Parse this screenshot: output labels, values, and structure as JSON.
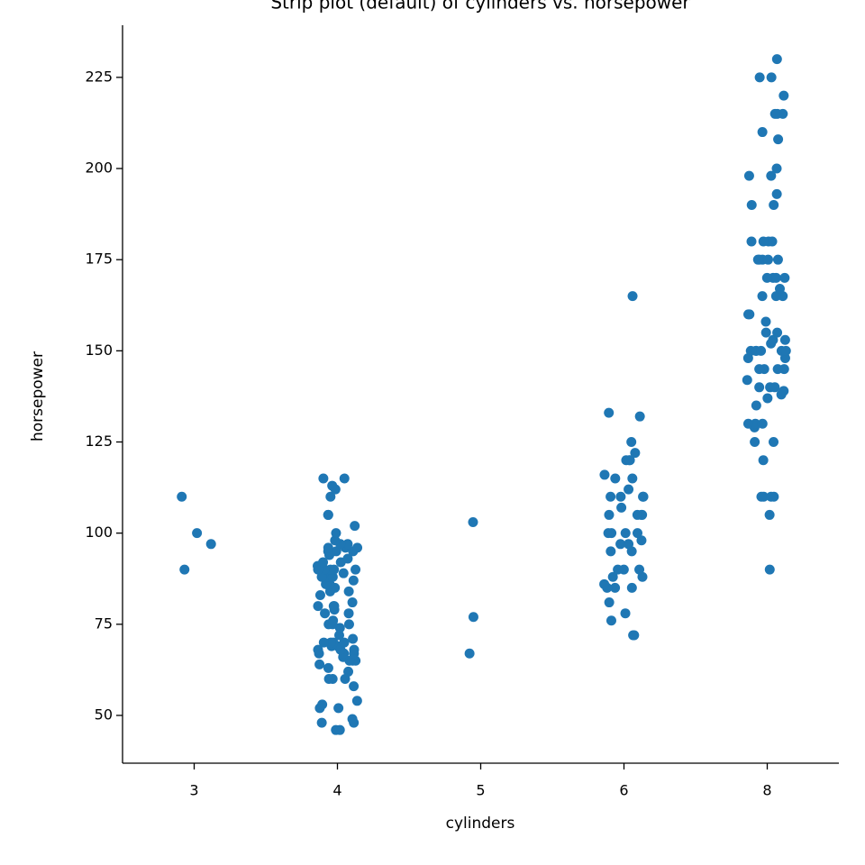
{
  "chart_data": {
    "type": "strip",
    "title": "Strip plot (default) of cylinders vs. horsepower",
    "x_label": "cylinders",
    "y_label": "horsepower",
    "categories": [
      "3",
      "4",
      "5",
      "6",
      "8"
    ],
    "values": [
      [
        90,
        97,
        100,
        110
      ],
      [
        46,
        46,
        48,
        48,
        49,
        52,
        52,
        53,
        54,
        58,
        60,
        60,
        60,
        62,
        63,
        64,
        65,
        65,
        65,
        66,
        67,
        67,
        67,
        68,
        68,
        68,
        69,
        69,
        70,
        70,
        70,
        70,
        71,
        72,
        74,
        75,
        75,
        75,
        76,
        78,
        78,
        79,
        80,
        80,
        80,
        81,
        83,
        84,
        84,
        85,
        86,
        86,
        86,
        87,
        88,
        88,
        88,
        88,
        89,
        90,
        90,
        90,
        90,
        90,
        91,
        92,
        92,
        93,
        94,
        95,
        95,
        95,
        96,
        96,
        96,
        97,
        97,
        98,
        100,
        102,
        105,
        105,
        110,
        112,
        113,
        115,
        115
      ],
      [
        67,
        77,
        103
      ],
      [
        72,
        72,
        76,
        78,
        81,
        85,
        85,
        85,
        86,
        88,
        88,
        90,
        90,
        90,
        95,
        95,
        97,
        97,
        98,
        100,
        100,
        100,
        100,
        105,
        105,
        105,
        105,
        107,
        110,
        110,
        110,
        110,
        112,
        115,
        115,
        116,
        120,
        120,
        120,
        122,
        125,
        132,
        133,
        165
      ],
      [
        90,
        105,
        110,
        110,
        110,
        110,
        120,
        125,
        125,
        129,
        130,
        130,
        130,
        135,
        137,
        138,
        139,
        140,
        140,
        140,
        142,
        145,
        145,
        145,
        145,
        148,
        148,
        150,
        150,
        150,
        150,
        150,
        150,
        152,
        153,
        153,
        155,
        155,
        158,
        160,
        160,
        165,
        165,
        165,
        167,
        170,
        170,
        170,
        170,
        175,
        175,
        175,
        175,
        175,
        180,
        180,
        180,
        180,
        190,
        190,
        193,
        198,
        198,
        200,
        208,
        210,
        215,
        215,
        215,
        220,
        225,
        225,
        230
      ]
    ],
    "color": "#1f77b4",
    "ylim": [
      36.9,
      239.3
    ],
    "yticks": [
      50,
      75,
      100,
      125,
      150,
      175,
      200,
      225
    ]
  }
}
